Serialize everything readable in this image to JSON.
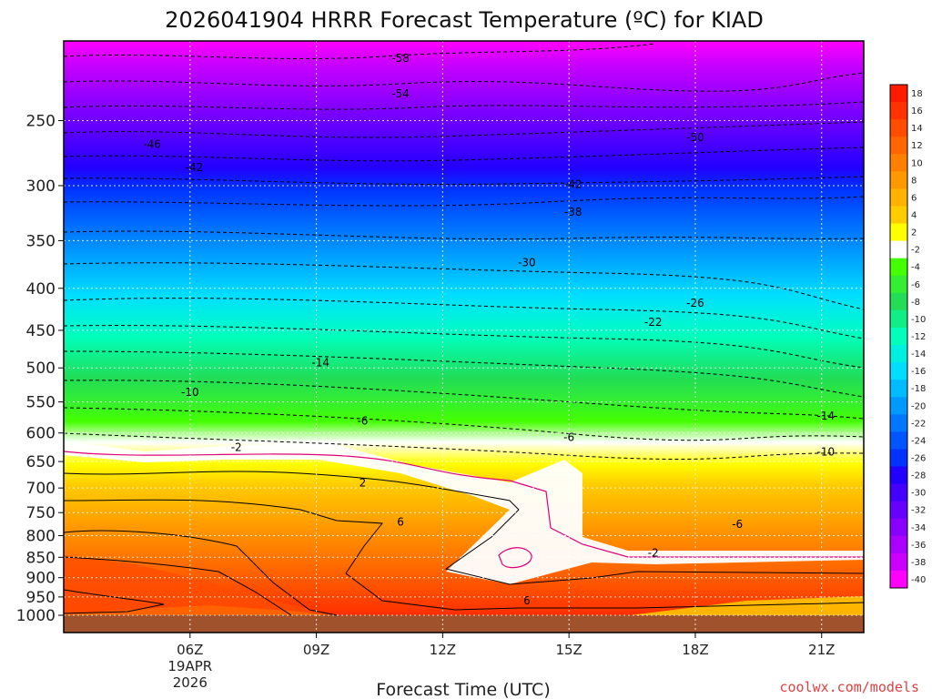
{
  "chart_data": {
    "type": "heatmap",
    "title": "2026041904 HRRR Forecast Temperature (ºC) for KIAD",
    "xlabel": "Forecast Time (UTC)",
    "ylabel": "",
    "y_scale": "log-pressure (inverted)",
    "ylim": [
      1000,
      200
    ],
    "xlim": [
      "03Z",
      "22Z"
    ],
    "y_ticks": [
      250,
      300,
      350,
      400,
      450,
      500,
      550,
      600,
      650,
      700,
      750,
      800,
      850,
      900,
      950,
      1000
    ],
    "x_ticks": [
      {
        "label": "06Z",
        "hour": 6,
        "sub": [
          "19APR",
          "2026"
        ]
      },
      {
        "label": "09Z",
        "hour": 9,
        "sub": []
      },
      {
        "label": "12Z",
        "hour": 12,
        "sub": []
      },
      {
        "label": "15Z",
        "hour": 15,
        "sub": []
      },
      {
        "label": "18Z",
        "hour": 18,
        "sub": []
      },
      {
        "label": "21Z",
        "hour": 21,
        "sub": []
      }
    ],
    "grid": true,
    "colorbar": {
      "placement": "right",
      "levels": [
        18,
        16,
        14,
        12,
        10,
        8,
        6,
        4,
        2,
        -2,
        -4,
        -6,
        -8,
        -10,
        -12,
        -14,
        -16,
        -18,
        -20,
        -22,
        -24,
        -26,
        -28,
        -30,
        -32,
        -34,
        -36,
        -38,
        -40
      ],
      "colors": [
        "#ff1a00",
        "#ff3300",
        "#ff4d00",
        "#ff6600",
        "#ff8000",
        "#ff9900",
        "#ffb300",
        "#ffcc00",
        "#ffff00",
        "#ffffff",
        "#44ff00",
        "#33ee33",
        "#22dd55",
        "#11ee88",
        "#00ffbb",
        "#00f0e0",
        "#00ddff",
        "#00bbff",
        "#0099ff",
        "#0077ff",
        "#0055ff",
        "#0033ff",
        "#2200ff",
        "#4400ff",
        "#6600ff",
        "#8800ff",
        "#aa00ff",
        "#cc00ff",
        "#ff00ff"
      ]
    },
    "contour_labels": [
      {
        "text": "-58",
        "hour": 11.0,
        "p": 210
      },
      {
        "text": "-54",
        "hour": 11.0,
        "p": 232
      },
      {
        "text": "-50",
        "hour": 18.0,
        "p": 262
      },
      {
        "text": "-46",
        "hour": 5.1,
        "p": 267
      },
      {
        "text": "-42",
        "hour": 6.1,
        "p": 285
      },
      {
        "text": "-42",
        "hour": 15.1,
        "p": 299
      },
      {
        "text": "-38",
        "hour": 15.1,
        "p": 323
      },
      {
        "text": "-30",
        "hour": 14.0,
        "p": 372
      },
      {
        "text": "-26",
        "hour": 18.0,
        "p": 417
      },
      {
        "text": "-22",
        "hour": 17.0,
        "p": 440
      },
      {
        "text": "-14",
        "hour": 9.1,
        "p": 493
      },
      {
        "text": "-10",
        "hour": 6.0,
        "p": 535
      },
      {
        "text": "-6",
        "hour": 10.1,
        "p": 580
      },
      {
        "text": "-6",
        "hour": 15.0,
        "p": 607
      },
      {
        "text": "-14",
        "hour": 21.1,
        "p": 572
      },
      {
        "text": "-2",
        "hour": 7.1,
        "p": 625
      },
      {
        "text": "-10",
        "hour": 21.1,
        "p": 633
      },
      {
        "text": "2",
        "hour": 10.1,
        "p": 690
      },
      {
        "text": "6",
        "hour": 11.0,
        "p": 770
      },
      {
        "text": "-6",
        "hour": 19.0,
        "p": 775
      },
      {
        "text": "-2",
        "hour": 17.0,
        "p": 840
      },
      {
        "text": "6",
        "hour": 14.0,
        "p": 960
      }
    ],
    "credit": "coolwx.com/models"
  }
}
